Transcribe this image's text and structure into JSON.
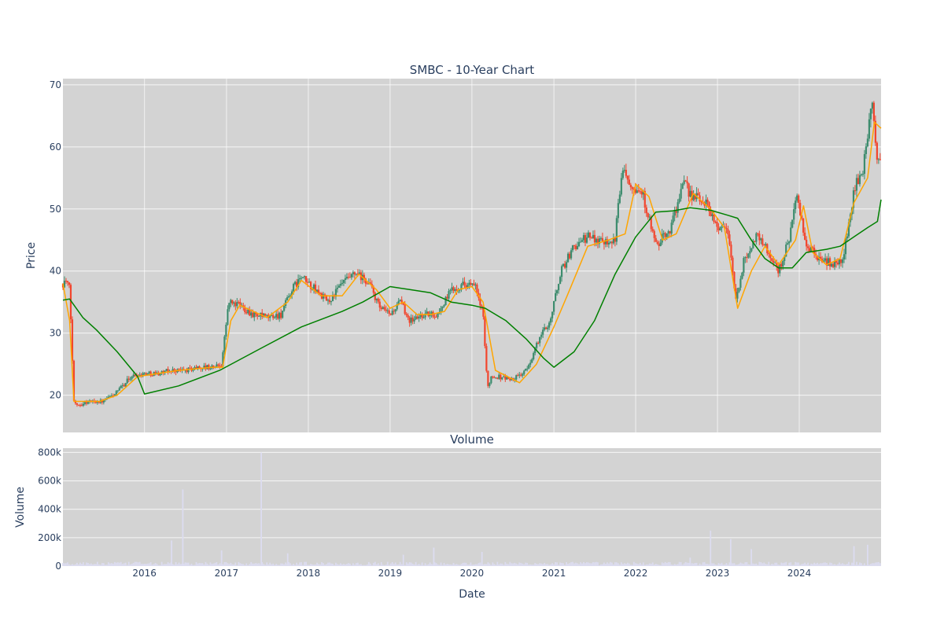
{
  "chart_data": [
    {
      "type": "candlestick",
      "title": "SMBC - 10-Year Chart",
      "ylabel": "Price",
      "ylim": [
        14,
        71
      ],
      "xlim": [
        "2015-01-02",
        "2024-12-31"
      ],
      "yticks": [
        20,
        30,
        40,
        50,
        60,
        70
      ],
      "grid": true,
      "colors": {
        "up": "#3d8c6e",
        "down": "#f2452d",
        "ma_short": "#ffa500",
        "ma_long": "#008000",
        "background": "#d3d3d3"
      },
      "price_path": {
        "dates": [
          "2015-01-02",
          "2015-01-15",
          "2015-02-01",
          "2015-02-20",
          "2015-03-15",
          "2015-05-01",
          "2015-07-01",
          "2015-09-01",
          "2015-11-01",
          "2016-01-01",
          "2016-03-01",
          "2016-05-01",
          "2016-07-01",
          "2016-09-01",
          "2016-11-01",
          "2016-12-10",
          "2017-01-10",
          "2017-03-01",
          "2017-05-01",
          "2017-07-01",
          "2017-09-01",
          "2017-10-20",
          "2017-12-01",
          "2018-02-01",
          "2018-04-01",
          "2018-06-01",
          "2018-08-01",
          "2018-10-01",
          "2018-11-15",
          "2019-01-01",
          "2019-02-15",
          "2019-04-01",
          "2019-06-01",
          "2019-08-01",
          "2019-10-01",
          "2019-12-01",
          "2020-01-15",
          "2020-02-20",
          "2020-03-10",
          "2020-03-25",
          "2020-05-01",
          "2020-07-01",
          "2020-09-01",
          "2020-11-01",
          "2020-12-15",
          "2021-02-01",
          "2021-04-01",
          "2021-06-01",
          "2021-08-01",
          "2021-10-01",
          "2021-11-01",
          "2021-12-15",
          "2022-02-01",
          "2022-04-01",
          "2022-06-01",
          "2022-08-01",
          "2022-09-15",
          "2022-11-15",
          "2023-01-01",
          "2023-02-15",
          "2023-03-25",
          "2023-05-01",
          "2023-07-01",
          "2023-08-15",
          "2023-10-01",
          "2023-11-15",
          "2023-12-20",
          "2024-02-01",
          "2024-04-01",
          "2024-06-01",
          "2024-07-15",
          "2024-09-01",
          "2024-10-15",
          "2024-11-20",
          "2024-12-10",
          "2024-12-31"
        ],
        "values": [
          38,
          38.5,
          37,
          19,
          18.5,
          19,
          19,
          20.5,
          23,
          23.5,
          23.5,
          24,
          24,
          24.5,
          24.5,
          25,
          35,
          34.5,
          33,
          32.5,
          33,
          37,
          39,
          37,
          35,
          38,
          39.5,
          38,
          34,
          33,
          35,
          32,
          33,
          33,
          37,
          38,
          37.5,
          33,
          21,
          23,
          23,
          22.5,
          24,
          29.5,
          32,
          40,
          44,
          45.5,
          45,
          45,
          57,
          54,
          52.5,
          44,
          46.5,
          54,
          52,
          51,
          47,
          47,
          35,
          42,
          46,
          43,
          40,
          45,
          52,
          44,
          42,
          41,
          42,
          53,
          57,
          67,
          59,
          58
        ]
      },
      "ma_short": {
        "dates": [
          "2015-01-02",
          "2015-02-01",
          "2015-02-20",
          "2015-04-15",
          "2015-06-15",
          "2015-09-01",
          "2015-12-01",
          "2016-06-01",
          "2016-11-01",
          "2016-12-15",
          "2017-01-20",
          "2017-03-01",
          "2017-07-01",
          "2017-10-01",
          "2017-12-01",
          "2018-03-01",
          "2018-06-01",
          "2018-08-15",
          "2018-11-01",
          "2019-01-01",
          "2019-03-01",
          "2019-05-01",
          "2019-07-01",
          "2019-09-01",
          "2019-11-01",
          "2020-01-01",
          "2020-02-20",
          "2020-04-15",
          "2020-08-01",
          "2020-10-15",
          "2021-01-01",
          "2021-03-01",
          "2021-06-01",
          "2021-09-01",
          "2021-11-15",
          "2022-01-01",
          "2022-03-01",
          "2022-05-01",
          "2022-07-01",
          "2022-09-15",
          "2022-12-01",
          "2023-02-01",
          "2023-04-01",
          "2023-06-01",
          "2023-08-01",
          "2023-10-01",
          "2023-12-15",
          "2024-01-20",
          "2024-03-01",
          "2024-05-01",
          "2024-07-01",
          "2024-09-01",
          "2024-11-01",
          "2024-12-01",
          "2024-12-31"
        ],
        "values": [
          38,
          32,
          19,
          19,
          19,
          20,
          23,
          24,
          24.5,
          24.5,
          32,
          34.5,
          32.5,
          35,
          38.5,
          36,
          36,
          39.5,
          37,
          34,
          35,
          33,
          33,
          33.5,
          37,
          37.5,
          35,
          24,
          22,
          25,
          31,
          36,
          44,
          45,
          46,
          54,
          52,
          45,
          46,
          52.5,
          50,
          47,
          34,
          40,
          44,
          41,
          45,
          50.5,
          43,
          41,
          42,
          51,
          55,
          64,
          63
        ]
      },
      "ma_long": {
        "dates": [
          "2015-01-02",
          "2015-02-01",
          "2015-04-01",
          "2015-06-01",
          "2015-09-01",
          "2015-12-01",
          "2016-01-01",
          "2016-06-01",
          "2016-12-01",
          "2017-06-01",
          "2017-12-01",
          "2018-06-01",
          "2018-09-01",
          "2019-01-01",
          "2019-04-01",
          "2019-07-01",
          "2019-10-01",
          "2020-01-01",
          "2020-03-01",
          "2020-06-01",
          "2020-09-01",
          "2020-11-15",
          "2021-01-01",
          "2021-04-01",
          "2021-07-01",
          "2021-10-01",
          "2022-01-01",
          "2022-04-01",
          "2022-06-15",
          "2022-09-01",
          "2022-12-01",
          "2023-02-15",
          "2023-04-01",
          "2023-06-01",
          "2023-08-01",
          "2023-10-01",
          "2023-12-01",
          "2024-02-01",
          "2024-05-01",
          "2024-07-01",
          "2024-09-01",
          "2024-11-01",
          "2024-12-15",
          "2024-12-31"
        ],
        "values": [
          35.3,
          35.5,
          32.5,
          30.5,
          27,
          23,
          20.2,
          21.5,
          24,
          27.5,
          31,
          33.5,
          35,
          37.5,
          37,
          36.5,
          35,
          34.5,
          34,
          32,
          29,
          26,
          24.5,
          27,
          32,
          39.5,
          45.5,
          49.5,
          49.7,
          50.2,
          49.8,
          49,
          48.5,
          45,
          42,
          40.5,
          40.5,
          43,
          43.5,
          44,
          45.5,
          47,
          48,
          51.5
        ]
      }
    },
    {
      "type": "bar",
      "title": "Volume",
      "xlabel": "Date",
      "ylabel": "Volume",
      "ylim": [
        0,
        830000
      ],
      "yticks": [
        0,
        200000,
        400000,
        600000,
        800000
      ],
      "ytick_labels": [
        "0",
        "200k",
        "400k",
        "600k",
        "800k"
      ],
      "xtick_labels": [
        "2016",
        "2017",
        "2018",
        "2019",
        "2020",
        "2021",
        "2022",
        "2023",
        "2024"
      ],
      "color": "#dcdcf0",
      "base_level": 15000,
      "spikes": [
        {
          "date": "2016-05-01",
          "value": 180000
        },
        {
          "date": "2016-06-20",
          "value": 540000
        },
        {
          "date": "2016-12-10",
          "value": 110000
        },
        {
          "date": "2017-06-05",
          "value": 800000
        },
        {
          "date": "2017-10-01",
          "value": 90000
        },
        {
          "date": "2019-03-01",
          "value": 80000
        },
        {
          "date": "2019-07-15",
          "value": 130000
        },
        {
          "date": "2020-02-15",
          "value": 100000
        },
        {
          "date": "2022-09-01",
          "value": 60000
        },
        {
          "date": "2022-12-01",
          "value": 250000
        },
        {
          "date": "2023-03-01",
          "value": 190000
        },
        {
          "date": "2023-06-01",
          "value": 120000
        },
        {
          "date": "2024-09-01",
          "value": 140000
        },
        {
          "date": "2024-11-01",
          "value": 150000
        }
      ]
    }
  ]
}
